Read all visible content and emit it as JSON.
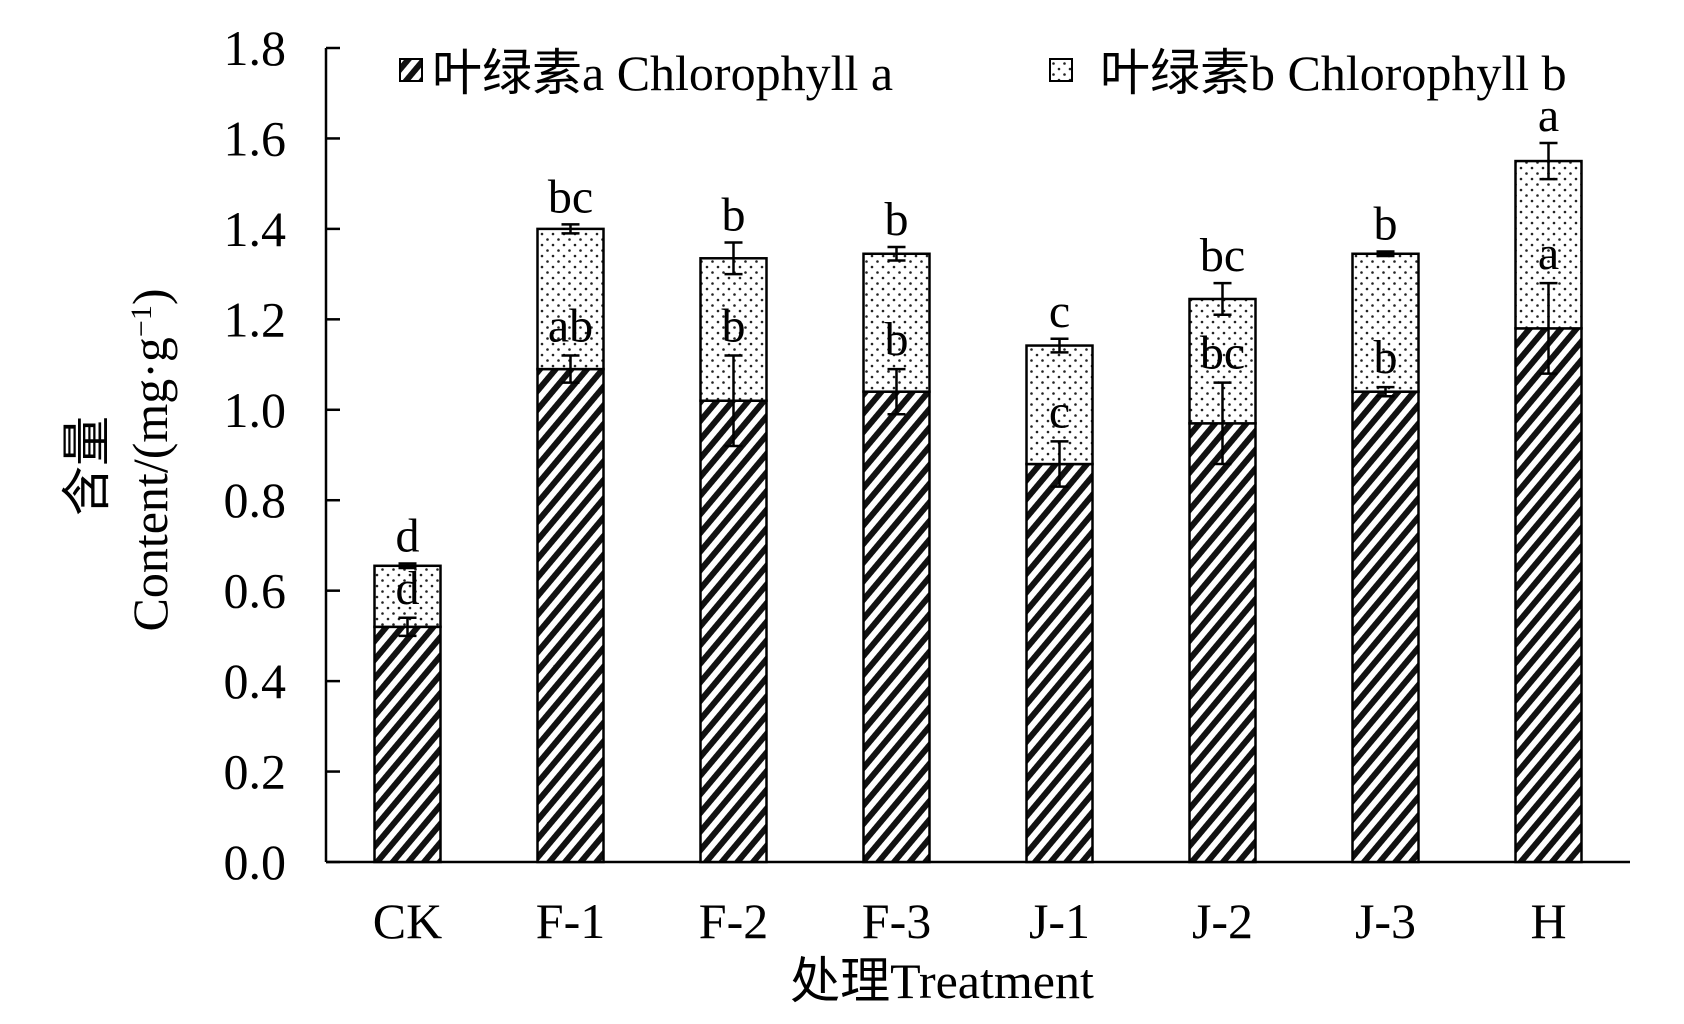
{
  "chart_data": {
    "type": "bar",
    "stacked": true,
    "categories": [
      "CK",
      "F-1",
      "F-2",
      "F-3",
      "J-1",
      "J-2",
      "J-3",
      "H"
    ],
    "series": [
      {
        "name": "叶绿素a Chlorophyll a",
        "pattern": "diagonal-hatch",
        "values": [
          0.52,
          1.09,
          1.02,
          1.04,
          0.88,
          0.97,
          1.04,
          1.18
        ],
        "errors": [
          0.02,
          0.03,
          0.1,
          0.05,
          0.05,
          0.09,
          0.01,
          0.1
        ],
        "labels": [
          "d",
          "ab",
          "b",
          "b",
          "c",
          "bc",
          "b",
          "a"
        ]
      },
      {
        "name": "叶绿素b Chlorophyll b",
        "pattern": "dotted",
        "values": [
          0.135,
          0.31,
          0.315,
          0.305,
          0.262,
          0.275,
          0.305,
          0.37
        ],
        "errors": [
          0.005,
          0.01,
          0.035,
          0.015,
          0.015,
          0.035,
          0.005,
          0.04
        ],
        "labels": [
          "d",
          "bc",
          "b",
          "b",
          "c",
          "bc",
          "b",
          "a"
        ]
      }
    ],
    "xlabel": "处理Treatment",
    "ylabel_cn": "含量",
    "ylabel_en": "Content/(mg·g",
    "ylabel_sup": "−1",
    "ylabel_close": ")",
    "ylim": [
      0,
      1.8
    ],
    "yticks": [
      "0.0",
      "0.2",
      "0.4",
      "0.6",
      "0.8",
      "1.0",
      "1.2",
      "1.4",
      "1.6",
      "1.8"
    ],
    "grid": false,
    "legend_position": "top"
  }
}
